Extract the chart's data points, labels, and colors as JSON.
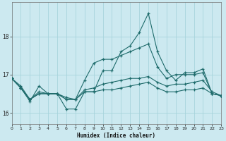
{
  "xlabel": "Humidex (Indice chaleur)",
  "background_color": "#cce9f0",
  "grid_color": "#a8d4dc",
  "line_color": "#1e6b6b",
  "xlim": [
    0,
    23
  ],
  "ylim": [
    15.7,
    18.9
  ],
  "yticks": [
    16,
    17,
    18
  ],
  "xticks": [
    0,
    1,
    2,
    3,
    4,
    5,
    6,
    7,
    8,
    9,
    10,
    11,
    12,
    13,
    14,
    15,
    16,
    17,
    18,
    19,
    20,
    21,
    22,
    23
  ],
  "series": [
    [
      16.9,
      16.65,
      16.3,
      16.7,
      16.5,
      16.5,
      16.1,
      16.1,
      16.55,
      16.55,
      17.1,
      17.1,
      17.6,
      17.75,
      18.1,
      18.6,
      17.6,
      17.1,
      16.85,
      17.05,
      17.05,
      17.15,
      16.5,
      16.45
    ],
    [
      16.9,
      16.65,
      16.35,
      16.5,
      16.5,
      16.5,
      16.4,
      16.35,
      16.85,
      17.3,
      17.4,
      17.4,
      17.5,
      17.6,
      17.7,
      17.8,
      17.2,
      16.9,
      17.0,
      17.0,
      17.0,
      17.05,
      16.5,
      16.45
    ],
    [
      16.9,
      16.7,
      16.35,
      16.5,
      16.5,
      16.5,
      16.35,
      16.35,
      16.55,
      16.55,
      16.6,
      16.6,
      16.65,
      16.7,
      16.75,
      16.8,
      16.65,
      16.55,
      16.55,
      16.6,
      16.6,
      16.65,
      16.5,
      16.45
    ],
    [
      16.9,
      16.65,
      16.35,
      16.55,
      16.5,
      16.5,
      16.35,
      16.35,
      16.6,
      16.65,
      16.75,
      16.8,
      16.85,
      16.9,
      16.9,
      16.95,
      16.8,
      16.7,
      16.75,
      16.75,
      16.8,
      16.85,
      16.55,
      16.45
    ]
  ]
}
